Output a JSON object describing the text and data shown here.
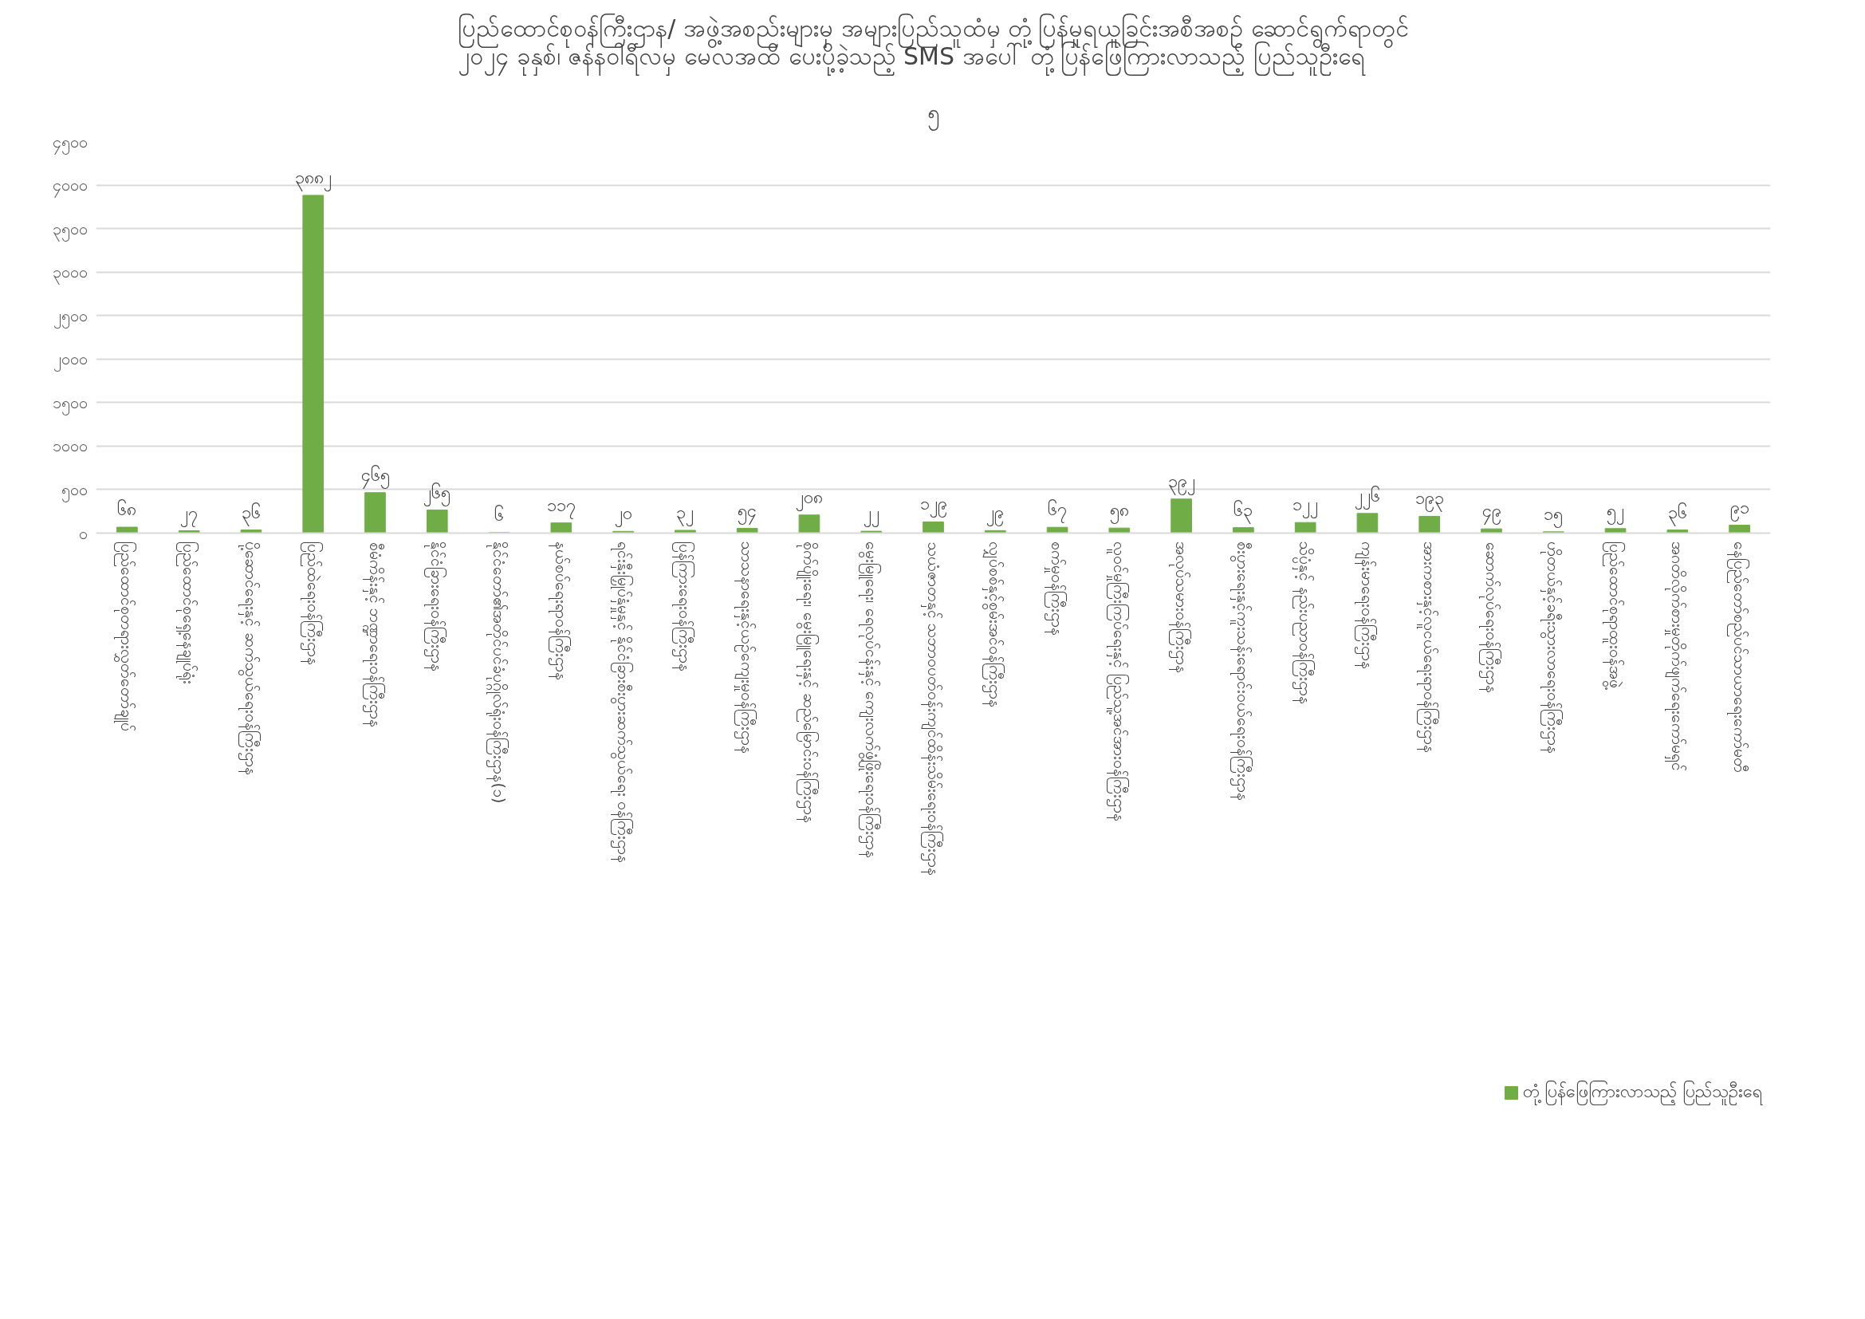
{
  "chart_data": {
    "type": "bar",
    "title": "ပြည်ထောင်စုဝန်ကြီးဌာန/ အဖွဲ့အစည်းများမှ အများပြည်သူထံမှ တုံ့ပြန်မှုရယူခြင်းအစီအစဉ် ဆောင်ရွက်ရာတွင်\n၂၀၂၄ ခုနှစ်၊ ဇန်နဝါရီလမှ မေလအထိ ပေးပို့ခဲ့သည့် SMS အပေါ် တုံ့ပြန်ဖြေကြားလာသည့် ပြည်သူဦးရေ",
    "annotations": [
      "၅"
    ],
    "categories": [
      "ပြည်ထောင်စုတရားလွှတ်တော်ချုပ်",
      "ပြည်ထောင်စုရှေ့နေချုပ်ရုံး",
      "ပို့ဆောင်ရေးနှင့် ဆက်သွယ်ရေးဝန်ကြီးဌာန",
      "ပြည်ထဲရေးဝန်ကြီးဌာန",
      "စီမံကိန်းနှင့် ဘဏ္ဍာရေးဝန်ကြီးဌာန",
      "နိုင်ငံခြားရေးဝန်ကြီးဌာန",
      "နိုင်ငံတော်၏အတိုင်ပင်ခံပုဂ္ဂိုလ်ရုံးဝန်ကြီးဌာန(၁)",
      "နယ်စပ်ရေးရာဝန်ကြီးဌာန",
      "ရင်းနှီးမြှုပ်နှံမှုနှင့် နိုင်ငံခြားစီးပွားဆက်သွယ်ရေး ဝန်ကြီးဌာန",
      "ပြန်ကြားရေးဝန်ကြီးဌာန",
      "သာသနာရေးနှင့်ယဉ်ကျေးမှုဝန်ကြီးဌာန",
      "စိုက်ပျိုးရေး၊ မွေးမြူရေးနှင့် ဆည်မြောင်းဝန်ကြီးဌာန",
      "မွေးမြူရေး၊ ရေလုပ်ငန်းနှင့် ကျေးလက်ဖွံ့ဖြိုးရေးဝန်ကြီးဌာန",
      "သယံဇာတနှင့် သဘာဝပတ်ဝန်းကျင်ထိန်းသိမ်းရေးဝန်ကြီးဌာန",
      "လျှပ်စစ်နှင့်စွမ်းအင်ဝန်ကြီးဌာန",
      "စက်မှုဝန်ကြီးဌာန",
      "လူဝင်မှုကြီးကြပ်ရေးနှင့် ပြည်သူ့အင်အားဝန်ကြီးဌာန",
      "အလုပ်သမားဝန်ကြီးဌာန",
      "စီးပွားရေးနှင့်ကူးသန်းရောင်းဝယ်ရေးဝန်ကြီးဌာန",
      "သိပ္ပံနှင့် နည်းပညာဝန်ကြီးဌာန",
      "ကျန်းမာရေးဝန်ကြီးဌာန",
      "အားကစားနှင့်လူငယ်ရေးရာဝန်ကြီးဌာန",
      "ဆောက်လုပ်ရေးဝန်ကြီးဌာန",
      "ဟိုတယ်နှင့်ခရီးသွားလာရေးဝန်ကြီးဌာန",
      "ပြည်ထောင်စုရာထူးဝန်အဖွဲ့",
      "အဂတိလိုက်စားမှုတိုက်ဖျက်ရေးကော်မရှင်",
      "နေပြည်တော်စည်ပင်သာယာရေးကော်မတီ"
    ],
    "series": [
      {
        "name": "တုံ့ပြန်ဖြေကြားလာသည့် ပြည်သူဦးရေ",
        "color": "#70ad47",
        "values": [
          68,
          27,
          36,
          3882,
          465,
          265,
          6,
          117,
          20,
          32,
          54,
          208,
          22,
          129,
          29,
          67,
          58,
          392,
          63,
          122,
          226,
          193,
          49,
          15,
          52,
          36,
          91
        ],
        "value_labels": [
          "၆၈",
          "၂၇",
          "၃၆",
          "၃၈၈၂",
          "၄၆၅",
          "၂၆၅",
          "၆",
          "၁၁၇",
          "၂၀",
          "၃၂",
          "၅၄",
          "၂၀၈",
          "၂၂",
          "၁၂၉",
          "၂၉",
          "၆၇",
          "၅၈",
          "၃၉၂",
          "၆၃",
          "၁၂၂",
          "၂၂၆",
          "၁၉၃",
          "၄၉",
          "၁၅",
          "၅၂",
          "၃၆",
          "၉၁"
        ]
      }
    ],
    "ylim": [
      0,
      4500
    ],
    "yticks": [
      {
        "value": 0,
        "label": "၀"
      },
      {
        "value": 500,
        "label": "၅၀၀"
      },
      {
        "value": 1000,
        "label": "၁၀၀၀"
      },
      {
        "value": 1500,
        "label": "၁၅၀၀"
      },
      {
        "value": 2000,
        "label": "၂၀၀၀"
      },
      {
        "value": 2500,
        "label": "၂၅၀၀"
      },
      {
        "value": 3000,
        "label": "၃၀၀၀"
      },
      {
        "value": 3500,
        "label": "၃၅၀၀"
      },
      {
        "value": 4000,
        "label": "၄၀၀၀"
      },
      {
        "value": 4500,
        "label": "၄၅၀၀"
      }
    ],
    "grid": "y",
    "legend": "bottom"
  }
}
